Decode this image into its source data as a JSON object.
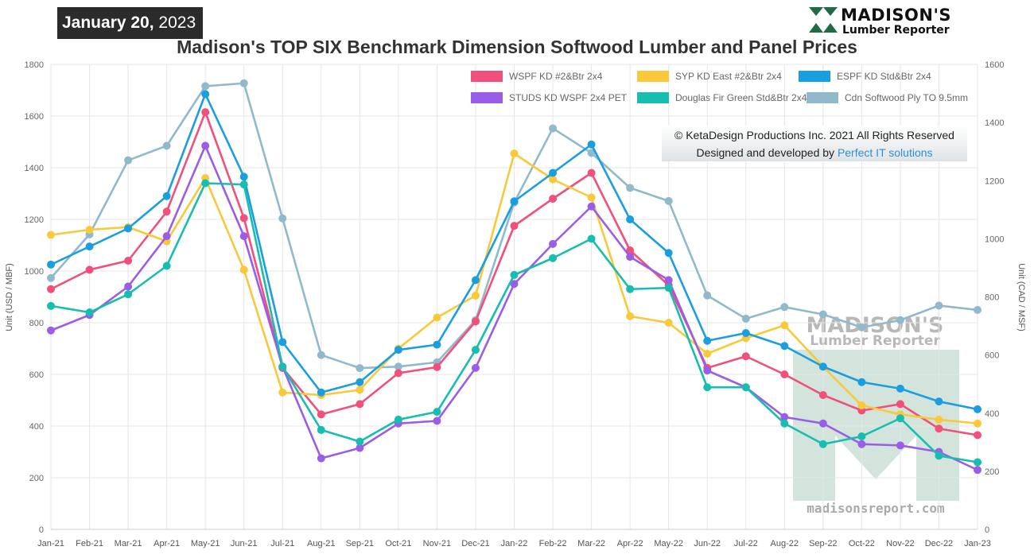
{
  "header": {
    "date_bold": "January 20,",
    "date_year": "2023",
    "brand_name": "MADISON'S",
    "brand_sub": "Lumber Reporter",
    "title": "Madison's TOP SIX Benchmark Dimension Softwood Lumber and Panel Prices"
  },
  "credits": {
    "line1": "© KetaDesign Productions Inc. 2021 All Rights Reserved",
    "line2_prefix": "Designed and developed by ",
    "line2_link": "Perfect IT solutions"
  },
  "watermark": {
    "name": "MADISON'S",
    "sub": "Lumber Reporter",
    "url": "madisonsreport.com"
  },
  "chart_data": {
    "type": "line",
    "categories": [
      "Jan-21",
      "Feb-21",
      "Mar-21",
      "Apr-21",
      "May-21",
      "Jun-21",
      "Jul-21",
      "Aug-21",
      "Sep-21",
      "Oct-21",
      "Nov-21",
      "Dec-21",
      "Jan-22",
      "Feb-22",
      "Mar-22",
      "Apr-22",
      "May-22",
      "Jun-22",
      "Jul-22",
      "Aug-22",
      "Sep-22",
      "Oct-22",
      "Nov-22",
      "Dec-22",
      "Jan-23"
    ],
    "ylabel": "Unit (USD / MBF)",
    "ylim": [
      0,
      1800
    ],
    "yticks": [
      0,
      200,
      400,
      600,
      800,
      1000,
      1200,
      1400,
      1600,
      1800
    ],
    "y2label": "Unit (CAD / MSF)",
    "y2lim": [
      0,
      1600
    ],
    "y2ticks": [
      0,
      200,
      400,
      600,
      800,
      1000,
      1200,
      1400,
      1600
    ],
    "grid": true,
    "legend_position": "top-right",
    "series": [
      {
        "name": "WSPF KD #2&Btr 2x4",
        "color": "#f0507a",
        "axis": "left",
        "values": [
          930,
          1005,
          1040,
          1230,
          1615,
          1205,
          625,
          445,
          485,
          605,
          628,
          805,
          1175,
          1280,
          1380,
          1080,
          945,
          625,
          670,
          600,
          520,
          460,
          485,
          390,
          365
        ]
      },
      {
        "name": "SYP KD East #2&Btr 2x4",
        "color": "#f8c93a",
        "axis": "left",
        "values": [
          1140,
          1160,
          1170,
          1115,
          1360,
          1005,
          530,
          520,
          540,
          700,
          820,
          905,
          1455,
          1355,
          1285,
          825,
          800,
          680,
          740,
          790,
          630,
          480,
          445,
          425,
          410
        ]
      },
      {
        "name": "ESPF KD Std&Btr 2x4",
        "color": "#1a9ee0",
        "axis": "left",
        "values": [
          1025,
          1095,
          1165,
          1290,
          1685,
          1365,
          725,
          530,
          570,
          695,
          715,
          965,
          1270,
          1380,
          1490,
          1200,
          1070,
          730,
          760,
          710,
          630,
          570,
          545,
          495,
          465
        ]
      },
      {
        "name": "STUDS KD WSPF 2x4 PET",
        "color": "#9b5de5",
        "axis": "left",
        "values": [
          770,
          830,
          940,
          1135,
          1485,
          1135,
          630,
          275,
          315,
          410,
          420,
          625,
          950,
          1105,
          1250,
          1055,
          965,
          615,
          550,
          435,
          410,
          330,
          325,
          300,
          230
        ]
      },
      {
        "name": "Douglas Fir Green Std&Btr 2x4",
        "color": "#16bdb0",
        "axis": "left",
        "values": [
          865,
          840,
          910,
          1020,
          1340,
          1335,
          630,
          385,
          340,
          425,
          455,
          695,
          985,
          1050,
          1125,
          930,
          935,
          550,
          550,
          410,
          330,
          360,
          430,
          285,
          260
        ]
      },
      {
        "name": "Cdn Softwood Ply TO 9.5mm",
        "color": "#90bacc",
        "axis": "right",
        "values": [
          865,
          1015,
          1270,
          1320,
          1525,
          1535,
          1070,
          600,
          555,
          560,
          575,
          720,
          1125,
          1380,
          1295,
          1175,
          1130,
          805,
          725,
          765,
          740,
          695,
          720,
          770,
          755
        ]
      }
    ]
  }
}
